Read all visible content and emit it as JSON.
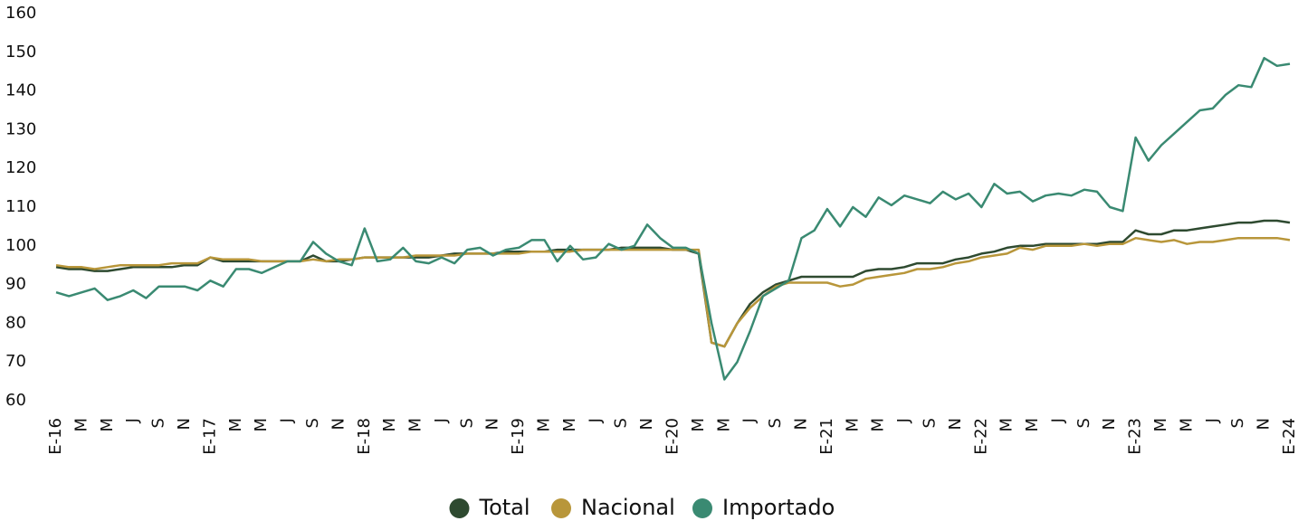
{
  "chart_data": {
    "type": "line",
    "categories": [
      "E-16",
      null,
      "M",
      null,
      "M",
      null,
      "J",
      null,
      "S",
      null,
      "N",
      null,
      "E-17",
      null,
      "M",
      null,
      "M",
      null,
      "J",
      null,
      "S",
      null,
      "N",
      null,
      "E-18",
      null,
      "M",
      null,
      "M",
      null,
      "J",
      null,
      "S",
      null,
      "N",
      null,
      "E-19",
      null,
      "M",
      null,
      "M",
      null,
      "J",
      null,
      "S",
      null,
      "N",
      null,
      "E-20",
      null,
      "M",
      null,
      "M",
      null,
      "J",
      null,
      "S",
      null,
      "N",
      null,
      "E-21",
      null,
      "M",
      null,
      "M",
      null,
      "J",
      null,
      "S",
      null,
      "N",
      null,
      "E-22",
      null,
      "M",
      null,
      "M",
      null,
      "J",
      null,
      "S",
      null,
      "N",
      null,
      "E-23",
      null,
      "M",
      null,
      "M",
      null,
      "J",
      null,
      "S",
      null,
      "N",
      null,
      "E-24"
    ],
    "series": [
      {
        "name": "Total",
        "color": "#2e4a30",
        "values": [
          94.5,
          94,
          94,
          93.5,
          93.5,
          94,
          94.5,
          94.5,
          94.5,
          94.5,
          95,
          95,
          97,
          96,
          96,
          96,
          96,
          96,
          96,
          96,
          97.5,
          96,
          96,
          96.5,
          97,
          97,
          97,
          97,
          97,
          97,
          97.5,
          98,
          98,
          98,
          98,
          98.5,
          98.5,
          98.5,
          98.5,
          99,
          99,
          99,
          99,
          99,
          99.5,
          99.5,
          99.5,
          99.5,
          99,
          99,
          98,
          75,
          74,
          80,
          85,
          88,
          90,
          91,
          92,
          92,
          92,
          92,
          92,
          93.5,
          94,
          94,
          94.5,
          95.5,
          95.5,
          95.5,
          96.5,
          97,
          98,
          98.5,
          99.5,
          100,
          100,
          100.5,
          100.5,
          100.5,
          100.5,
          100.5,
          101,
          101,
          104,
          103,
          103,
          104,
          104,
          104.5,
          105,
          105.5,
          106,
          106,
          106.5,
          106.5,
          106
        ]
      },
      {
        "name": "Nacional",
        "color": "#b8963a",
        "values": [
          95,
          94.5,
          94.5,
          94,
          94.5,
          95,
          95,
          95,
          95,
          95.5,
          95.5,
          95.5,
          97,
          96.5,
          96.5,
          96.5,
          96,
          96,
          96,
          96,
          96.5,
          96,
          96.5,
          96.5,
          97,
          97,
          97,
          97,
          97.5,
          97.5,
          97.5,
          97.5,
          98,
          98,
          98,
          98,
          98,
          98.5,
          98.5,
          98.5,
          98.5,
          99,
          99,
          99,
          99,
          99,
          99,
          99,
          99,
          99,
          99,
          75,
          74,
          80,
          84,
          87,
          89.5,
          90.5,
          90.5,
          90.5,
          90.5,
          89.5,
          90,
          91.5,
          92,
          92.5,
          93,
          94,
          94,
          94.5,
          95.5,
          96,
          97,
          97.5,
          98,
          99.5,
          99,
          100,
          100,
          100,
          100.5,
          100,
          100.5,
          100.5,
          102,
          101.5,
          101,
          101.5,
          100.5,
          101,
          101,
          101.5,
          102,
          102,
          102,
          102,
          101.5
        ]
      },
      {
        "name": "Importado",
        "color": "#3a8a72",
        "values": [
          88,
          87,
          88,
          89,
          86,
          87,
          88.5,
          86.5,
          89.5,
          89.5,
          89.5,
          88.5,
          91,
          89.5,
          94,
          94,
          93,
          94.5,
          96,
          96,
          101,
          98,
          96,
          95,
          104.5,
          96,
          96.5,
          99.5,
          96,
          95.5,
          97,
          95.5,
          99,
          99.5,
          97.5,
          99,
          99.5,
          101.5,
          101.5,
          96,
          100,
          96.5,
          97,
          100.5,
          99,
          100,
          105.5,
          102,
          99.5,
          99.5,
          98,
          80,
          65.5,
          70,
          78,
          87,
          89,
          91,
          102,
          104,
          109.5,
          105,
          110,
          107.5,
          112.5,
          110.5,
          113,
          112,
          111,
          114,
          112,
          113.5,
          110,
          116,
          113.5,
          114,
          111.5,
          113,
          113.5,
          113,
          114.5,
          114,
          110,
          109,
          128,
          122,
          126,
          129,
          132,
          135,
          135.5,
          139,
          141.5,
          141,
          148.5,
          146.5,
          147
        ]
      }
    ],
    "ylim": [
      60,
      160
    ],
    "yticks": [
      60,
      70,
      80,
      90,
      100,
      110,
      120,
      130,
      140,
      150,
      160
    ],
    "grid": false,
    "legend": "bottom"
  }
}
